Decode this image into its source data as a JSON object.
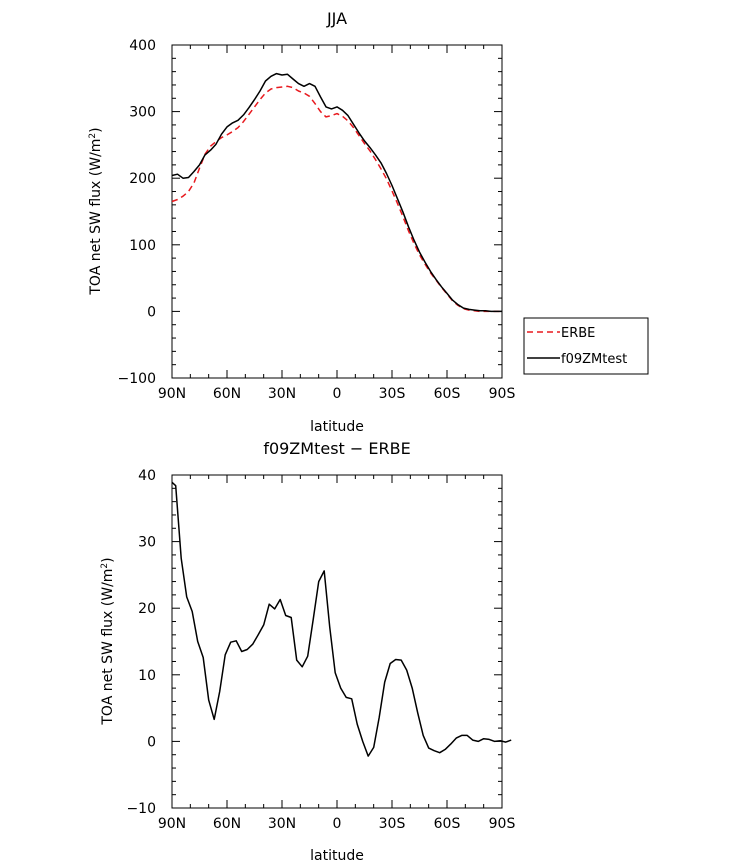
{
  "chart_data": [
    {
      "type": "line",
      "title": "JJA",
      "xlabel": "latitude",
      "ylabel": "TOA net SW flux (W/m²)",
      "ylabel_base": "TOA net SW flux (W/m",
      "ylabel_sup": "2",
      "ylabel_end": ")",
      "xlim": [
        90,
        -90
      ],
      "ylim": [
        -100,
        400
      ],
      "x_ticks": [
        90,
        60,
        30,
        0,
        -30,
        -60,
        -90
      ],
      "x_tick_labels": [
        "90N",
        "60N",
        "30N",
        "0",
        "30S",
        "60S",
        "90S"
      ],
      "y_ticks": [
        -100,
        0,
        100,
        200,
        300,
        400
      ],
      "y_tick_labels": [
        "−100",
        "0",
        "100",
        "200",
        "300",
        "400"
      ],
      "legend": {
        "placement": "outside-right",
        "entries": [
          "ERBE",
          "f09ZMtest"
        ]
      },
      "grid": false,
      "series": [
        {
          "name": "ERBE",
          "color": "#e8191e",
          "dash": true,
          "points": [
            [
              90,
              165
            ],
            [
              87,
              168
            ],
            [
              84,
              173
            ],
            [
              81,
              180
            ],
            [
              78,
              193
            ],
            [
              75,
              215
            ],
            [
              72,
              236
            ],
            [
              69,
              248
            ],
            [
              66,
              255
            ],
            [
              63,
              261
            ],
            [
              60,
              265
            ],
            [
              57,
              270
            ],
            [
              54,
              276
            ],
            [
              51,
              285
            ],
            [
              48,
              296
            ],
            [
              45,
              307
            ],
            [
              42,
              318
            ],
            [
              39,
              328
            ],
            [
              36,
              334
            ],
            [
              33,
              336
            ],
            [
              30,
              337
            ],
            [
              27,
              338
            ],
            [
              24,
              336
            ],
            [
              21,
              331
            ],
            [
              18,
              328
            ],
            [
              15,
              323
            ],
            [
              12,
              312
            ],
            [
              9,
              300
            ],
            [
              6,
              292
            ],
            [
              3,
              294
            ],
            [
              0,
              297
            ],
            [
              -3,
              293
            ],
            [
              -6,
              286
            ],
            [
              -9,
              276
            ],
            [
              -12,
              264
            ],
            [
              -15,
              252
            ],
            [
              -18,
              241
            ],
            [
              -21,
              228
            ],
            [
              -24,
              214
            ],
            [
              -27,
              199
            ],
            [
              -30,
              181
            ],
            [
              -33,
              162
            ],
            [
              -36,
              142
            ],
            [
              -39,
              121
            ],
            [
              -42,
              102
            ],
            [
              -45,
              85
            ],
            [
              -48,
              71
            ],
            [
              -51,
              58
            ],
            [
              -54,
              47
            ],
            [
              -57,
              36
            ],
            [
              -60,
              26
            ],
            [
              -63,
              16
            ],
            [
              -66,
              9
            ],
            [
              -69,
              4
            ],
            [
              -72,
              2
            ],
            [
              -75,
              1
            ],
            [
              -78,
              0
            ],
            [
              -81,
              0
            ],
            [
              -84,
              0
            ],
            [
              -87,
              0
            ],
            [
              -90,
              0
            ]
          ]
        },
        {
          "name": "f09ZMtest",
          "color": "#000000",
          "dash": false,
          "points": [
            [
              90,
              204
            ],
            [
              87,
              206
            ],
            [
              84,
              200
            ],
            [
              81,
              201
            ],
            [
              78,
              210
            ],
            [
              75,
              220
            ],
            [
              72,
              235
            ],
            [
              69,
              242
            ],
            [
              66,
              251
            ],
            [
              63,
              266
            ],
            [
              60,
              277
            ],
            [
              57,
              283
            ],
            [
              54,
              287
            ],
            [
              51,
              295
            ],
            [
              48,
              306
            ],
            [
              45,
              318
            ],
            [
              42,
              331
            ],
            [
              39,
              346
            ],
            [
              36,
              353
            ],
            [
              33,
              357
            ],
            [
              30,
              355
            ],
            [
              27,
              356
            ],
            [
              24,
              349
            ],
            [
              21,
              342
            ],
            [
              18,
              338
            ],
            [
              15,
              342
            ],
            [
              12,
              338
            ],
            [
              9,
              322
            ],
            [
              6,
              307
            ],
            [
              3,
              304
            ],
            [
              0,
              307
            ],
            [
              -3,
              302
            ],
            [
              -6,
              294
            ],
            [
              -9,
              281
            ],
            [
              -12,
              268
            ],
            [
              -15,
              256
            ],
            [
              -18,
              246
            ],
            [
              -21,
              235
            ],
            [
              -24,
              223
            ],
            [
              -27,
              207
            ],
            [
              -30,
              189
            ],
            [
              -33,
              169
            ],
            [
              -36,
              149
            ],
            [
              -39,
              127
            ],
            [
              -42,
              107
            ],
            [
              -45,
              89
            ],
            [
              -48,
              74
            ],
            [
              -51,
              60
            ],
            [
              -54,
              48
            ],
            [
              -57,
              37
            ],
            [
              -60,
              27
            ],
            [
              -63,
              17
            ],
            [
              -66,
              10
            ],
            [
              -69,
              5
            ],
            [
              -72,
              3
            ],
            [
              -75,
              2
            ],
            [
              -78,
              1
            ],
            [
              -81,
              1
            ],
            [
              -84,
              0
            ],
            [
              -87,
              0
            ],
            [
              -90,
              0
            ]
          ]
        }
      ]
    },
    {
      "type": "line",
      "title": "f09ZMtest − ERBE",
      "xlabel": "latitude",
      "ylabel": "TOA net SW flux (W/m²)",
      "ylabel_base": "TOA net SW flux (W/m",
      "ylabel_sup": "2",
      "ylabel_end": ")",
      "xlim": [
        90,
        -90
      ],
      "ylim": [
        -10,
        40
      ],
      "x_ticks": [
        90,
        60,
        30,
        0,
        -30,
        -60,
        -90
      ],
      "x_tick_labels": [
        "90N",
        "60N",
        "30N",
        "0",
        "30S",
        "60S",
        "90S"
      ],
      "y_ticks": [
        -10,
        0,
        10,
        20,
        30,
        40
      ],
      "y_tick_labels": [
        "−10",
        "0",
        "10",
        "20",
        "30",
        "40"
      ],
      "grid": false,
      "series": [
        {
          "color": "#000000",
          "dash": false,
          "points": [
            [
              90,
              38.9
            ],
            [
              88,
              38.4
            ],
            [
              85,
              27.5
            ],
            [
              82,
              21.7
            ],
            [
              79,
              19.5
            ],
            [
              76,
              15.0
            ],
            [
              73,
              12.6
            ],
            [
              70,
              6.2
            ],
            [
              67,
              3.3
            ],
            [
              64,
              7.5
            ],
            [
              61,
              13.0
            ],
            [
              58,
              14.9
            ],
            [
              55,
              15.1
            ],
            [
              52,
              13.5
            ],
            [
              49,
              13.8
            ],
            [
              46,
              14.6
            ],
            [
              43,
              16.0
            ],
            [
              40,
              17.5
            ],
            [
              37,
              20.6
            ],
            [
              34,
              19.9
            ],
            [
              31,
              21.3
            ],
            [
              28,
              18.9
            ],
            [
              25,
              18.6
            ],
            [
              22,
              12.2
            ],
            [
              19,
              11.2
            ],
            [
              16,
              12.8
            ],
            [
              13,
              18.3
            ],
            [
              10,
              24.0
            ],
            [
              7,
              25.6
            ],
            [
              4,
              17.2
            ],
            [
              1,
              10.3
            ],
            [
              -2,
              8.0
            ],
            [
              -5,
              6.6
            ],
            [
              -8,
              6.4
            ],
            [
              -11,
              2.6
            ],
            [
              -14,
              0.0
            ],
            [
              -17,
              -2.2
            ],
            [
              -20,
              -0.9
            ],
            [
              -23,
              3.6
            ],
            [
              -26,
              8.9
            ],
            [
              -29,
              11.7
            ],
            [
              -32,
              12.3
            ],
            [
              -35,
              12.2
            ],
            [
              -38,
              10.7
            ],
            [
              -41,
              8.0
            ],
            [
              -44,
              4.3
            ],
            [
              -47,
              0.9
            ],
            [
              -50,
              -1.0
            ],
            [
              -53,
              -1.4
            ],
            [
              -56,
              -1.7
            ],
            [
              -59,
              -1.2
            ],
            [
              -62,
              -0.4
            ],
            [
              -65,
              0.5
            ],
            [
              -68,
              0.9
            ],
            [
              -71,
              0.9
            ],
            [
              -74,
              0.2
            ],
            [
              -77,
              0.0
            ],
            [
              -80,
              0.4
            ],
            [
              -83,
              0.3
            ],
            [
              -86,
              0.0
            ],
            [
              -89,
              0.1
            ],
            [
              -92,
              -0.1
            ],
            [
              -95,
              0.2
            ]
          ]
        }
      ]
    }
  ]
}
